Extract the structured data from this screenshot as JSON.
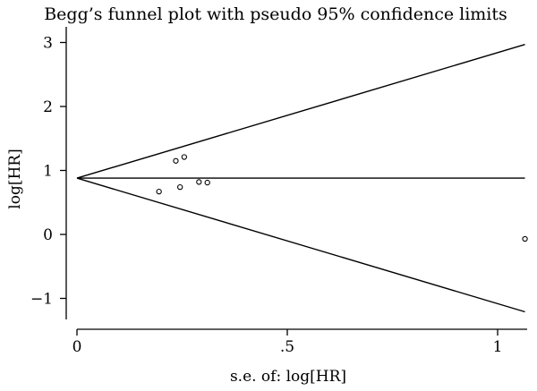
{
  "chart_data": {
    "type": "scatter",
    "title": "Begg’s funnel plot with pseudo 95% confidence limits",
    "xlabel": "s.e. of: log[HR]",
    "ylabel": "log[HR]",
    "xlim": [
      0,
      1.07
    ],
    "ylim": [
      -1.3,
      3.1
    ],
    "x_ticks": [
      {
        "value": 0,
        "label": "0"
      },
      {
        "value": 0.5,
        "label": ".5"
      },
      {
        "value": 1,
        "label": "1"
      }
    ],
    "y_ticks": [
      {
        "value": -1,
        "label": "−1"
      },
      {
        "value": 0,
        "label": "0"
      },
      {
        "value": 1,
        "label": "1"
      },
      {
        "value": 2,
        "label": "2"
      },
      {
        "value": 3,
        "label": "3"
      }
    ],
    "pooled_estimate": 0.88,
    "funnel_lines": [
      {
        "x": [
          0,
          1.065
        ],
        "y": [
          0.88,
          2.97
        ]
      },
      {
        "x": [
          0,
          1.065
        ],
        "y": [
          0.88,
          0.88
        ]
      },
      {
        "x": [
          0,
          1.065
        ],
        "y": [
          0.88,
          -1.21
        ]
      }
    ],
    "points": [
      {
        "x": 0.195,
        "y": 0.67
      },
      {
        "x": 0.235,
        "y": 1.15
      },
      {
        "x": 0.245,
        "y": 0.74
      },
      {
        "x": 0.255,
        "y": 1.21
      },
      {
        "x": 0.29,
        "y": 0.82
      },
      {
        "x": 0.31,
        "y": 0.81
      },
      {
        "x": 1.065,
        "y": -0.07
      }
    ],
    "grid": false,
    "legend": "none"
  }
}
